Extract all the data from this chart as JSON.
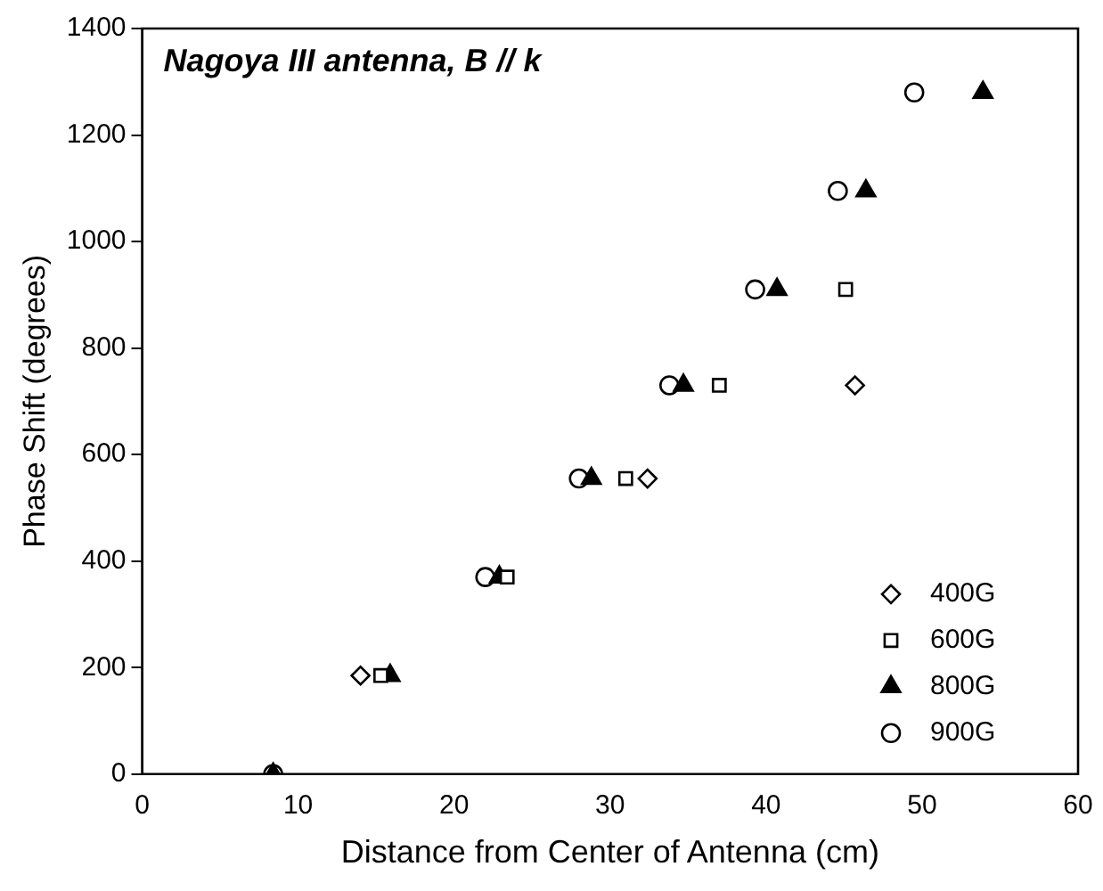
{
  "chart_data": {
    "type": "scatter",
    "title": "Nagoya III antenna, B // k",
    "xlabel": "Distance from Center of Antenna (cm)",
    "ylabel": "Phase Shift (degrees)",
    "xlim": [
      0,
      60
    ],
    "xticks": [
      0,
      10,
      20,
      30,
      40,
      50,
      60
    ],
    "ylim": [
      0,
      1400
    ],
    "yticks": [
      0,
      200,
      400,
      600,
      800,
      1000,
      1200,
      1400
    ],
    "grid": false,
    "legend": "bottom right",
    "series": [
      {
        "name": "400G",
        "color": "#000000",
        "marker": "diamond",
        "x": [
          14.0,
          32.4,
          45.7
        ],
        "values": [
          185,
          555,
          730
        ]
      },
      {
        "name": "600G",
        "color": "#000000",
        "marker": "square",
        "x": [
          15.3,
          23.4,
          31.0,
          37.0,
          45.1
        ],
        "values": [
          185,
          370,
          555,
          730,
          910
        ]
      },
      {
        "name": "800G",
        "color": "#000000",
        "marker": "triangle",
        "x": [
          8.4,
          15.9,
          22.9,
          28.8,
          34.7,
          40.7,
          46.4,
          53.9
        ],
        "values": [
          0,
          185,
          370,
          555,
          730,
          910,
          1095,
          1280
        ]
      },
      {
        "name": "900G",
        "color": "#000000",
        "marker": "circle",
        "x": [
          8.4,
          15.2,
          22.0,
          28.0,
          33.8,
          39.3,
          44.6,
          49.5
        ],
        "values": [
          0,
          null,
          370,
          555,
          730,
          910,
          1095,
          1280
        ]
      }
    ]
  }
}
